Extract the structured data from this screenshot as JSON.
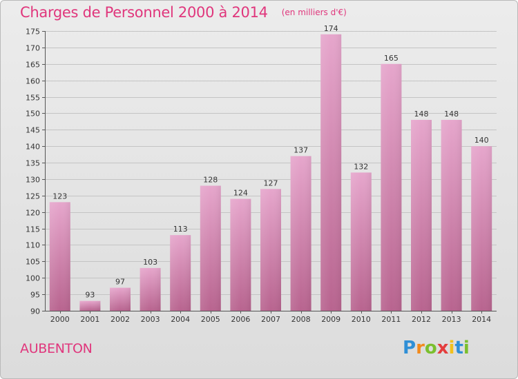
{
  "header": {
    "title": "Charges de Personnel 2000 à 2014",
    "subtitle": "(en milliers d'€)"
  },
  "footer": {
    "commune": "AUBENTON",
    "logo": "Proxiti",
    "logo_icon": "proxiti-logo-icon"
  },
  "colors": {
    "accent": "#e0367c",
    "bar_top": "#e6a6cc",
    "bar_bottom": "#b8648f"
  },
  "chart_data": {
    "type": "bar",
    "title": "Charges de Personnel 2000 à 2014",
    "subtitle": "(en milliers d'€)",
    "categories": [
      "2000",
      "2001",
      "2002",
      "2003",
      "2004",
      "2005",
      "2006",
      "2007",
      "2008",
      "2009",
      "2010",
      "2011",
      "2012",
      "2013",
      "2014"
    ],
    "values": [
      123,
      93,
      97,
      103,
      113,
      128,
      124,
      127,
      137,
      174,
      132,
      165,
      148,
      148,
      140
    ],
    "ylim": [
      90,
      175
    ],
    "yticks": [
      90,
      95,
      100,
      105,
      110,
      115,
      120,
      125,
      130,
      135,
      140,
      145,
      150,
      155,
      160,
      165,
      170,
      175
    ],
    "grid": true,
    "legend": "none"
  }
}
